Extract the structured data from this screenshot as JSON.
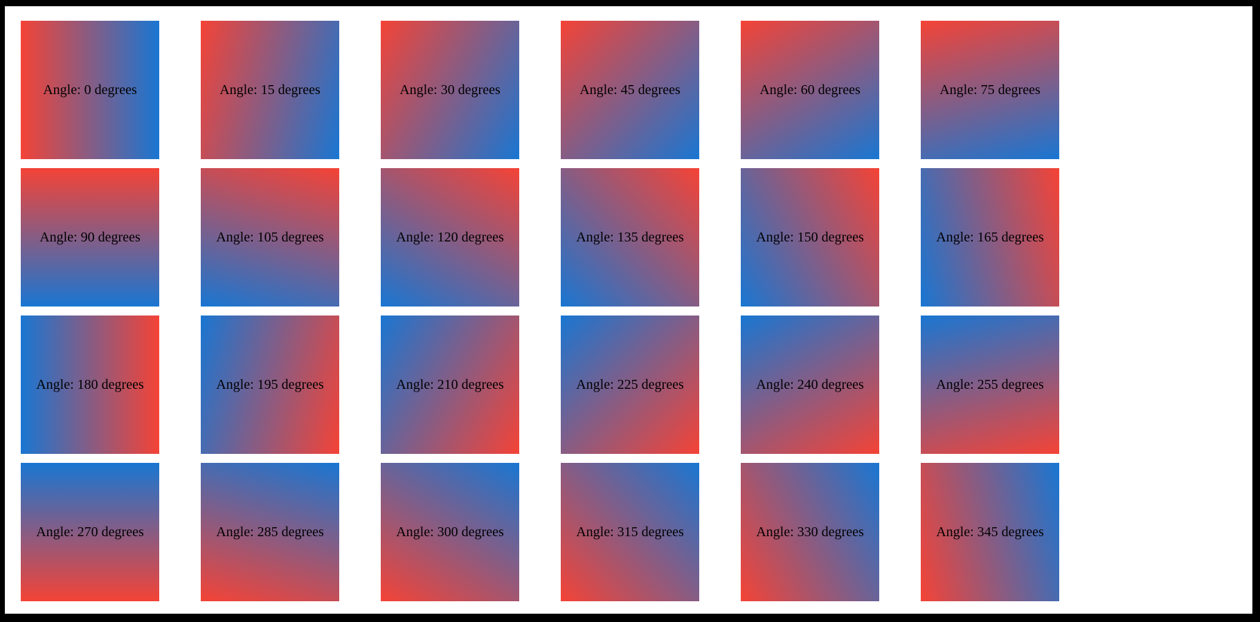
{
  "frame": {
    "color": "#000000"
  },
  "page": {
    "background": "#ffffff"
  },
  "gradient": {
    "start_color": "#f44336",
    "end_color": "#1976d2"
  },
  "label_color": "#000000",
  "tiles": [
    {
      "angle": 0,
      "label": "Angle: 0 degrees"
    },
    {
      "angle": 15,
      "label": "Angle: 15 degrees"
    },
    {
      "angle": 30,
      "label": "Angle: 30 degrees"
    },
    {
      "angle": 45,
      "label": "Angle: 45 degrees"
    },
    {
      "angle": 60,
      "label": "Angle: 60 degrees"
    },
    {
      "angle": 75,
      "label": "Angle: 75 degrees"
    },
    {
      "angle": 90,
      "label": "Angle: 90 degrees"
    },
    {
      "angle": 105,
      "label": "Angle: 105 degrees"
    },
    {
      "angle": 120,
      "label": "Angle: 120 degrees"
    },
    {
      "angle": 135,
      "label": "Angle: 135 degrees"
    },
    {
      "angle": 150,
      "label": "Angle: 150 degrees"
    },
    {
      "angle": 165,
      "label": "Angle: 165 degrees"
    },
    {
      "angle": 180,
      "label": "Angle: 180 degrees"
    },
    {
      "angle": 195,
      "label": "Angle: 195 degrees"
    },
    {
      "angle": 210,
      "label": "Angle: 210 degrees"
    },
    {
      "angle": 225,
      "label": "Angle: 225 degrees"
    },
    {
      "angle": 240,
      "label": "Angle: 240 degrees"
    },
    {
      "angle": 255,
      "label": "Angle: 255 degrees"
    },
    {
      "angle": 270,
      "label": "Angle: 270 degrees"
    },
    {
      "angle": 285,
      "label": "Angle: 285 degrees"
    },
    {
      "angle": 300,
      "label": "Angle: 300 degrees"
    },
    {
      "angle": 315,
      "label": "Angle: 315 degrees"
    },
    {
      "angle": 330,
      "label": "Angle: 330 degrees"
    },
    {
      "angle": 345,
      "label": "Angle: 345 degrees"
    }
  ]
}
